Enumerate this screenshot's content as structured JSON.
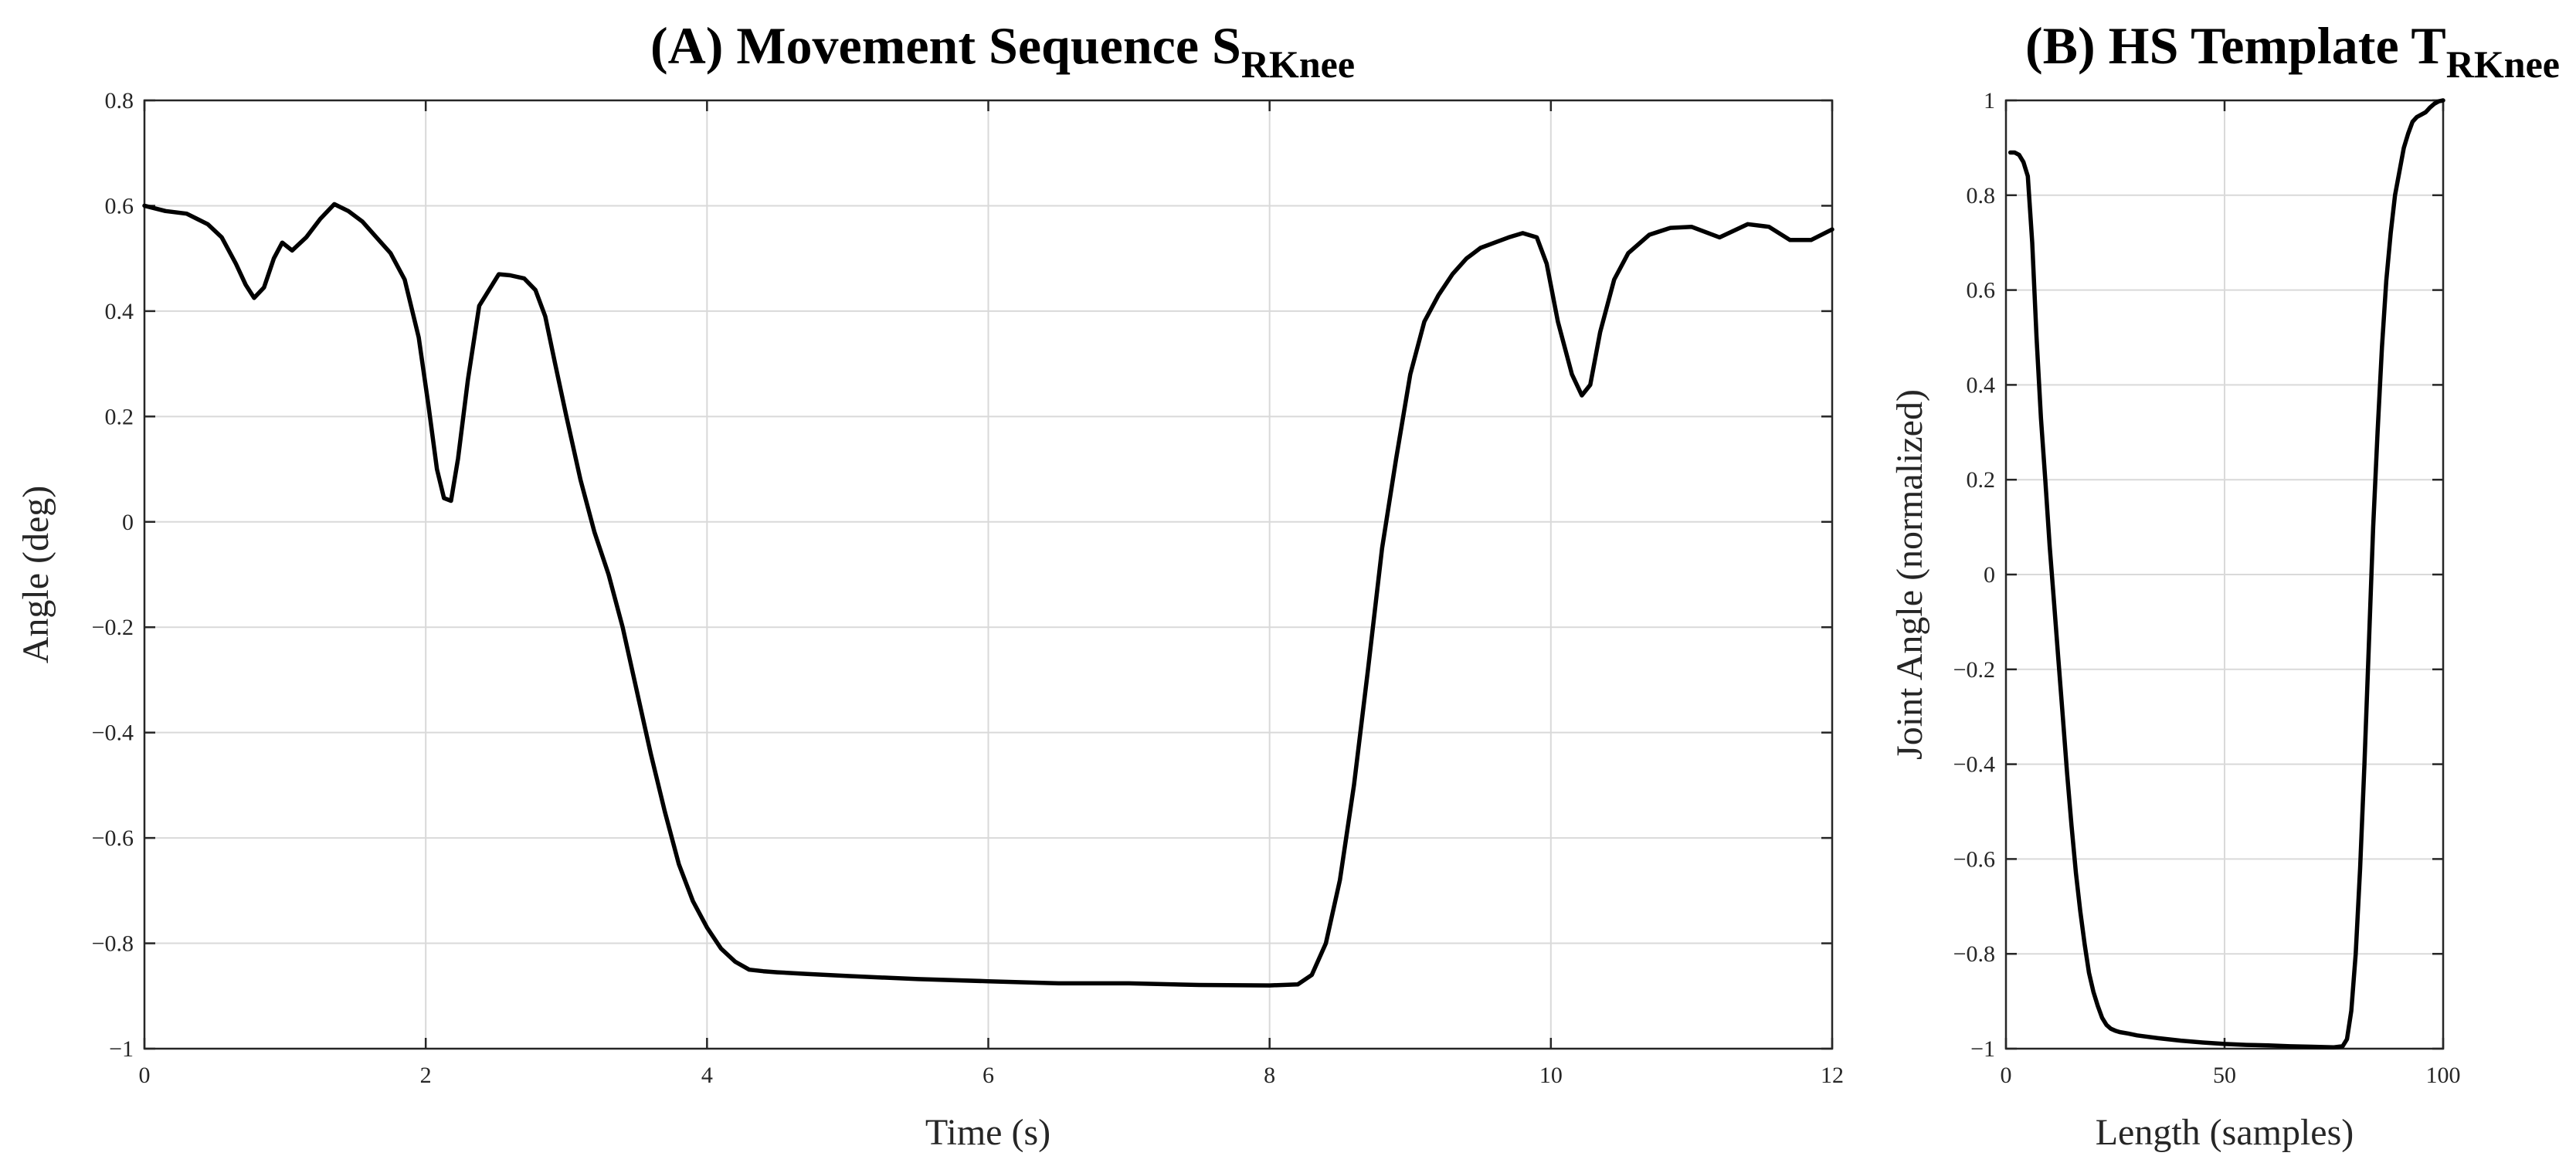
{
  "chart_data": [
    {
      "type": "line",
      "title": "(A) Movement Sequence S",
      "title_subscript": "RKnee",
      "xlabel": "Time (s)",
      "ylabel": "Angle (deg)",
      "xlim": [
        0,
        12
      ],
      "ylim": [
        -1,
        0.8
      ],
      "xticks": [
        0,
        2,
        4,
        6,
        8,
        10,
        12
      ],
      "xtick_labels": [
        "0",
        "2",
        "4",
        "6",
        "8",
        "10",
        "12"
      ],
      "yticks": [
        -1,
        -0.8,
        -0.6,
        -0.4,
        -0.2,
        0,
        0.2,
        0.4,
        0.6,
        0.8
      ],
      "ytick_labels": [
        "−1",
        "−0.8",
        "−0.6",
        "−0.4",
        "−0.2",
        "0",
        "0.2",
        "0.4",
        "0.6",
        "0.8"
      ],
      "grid": true,
      "series": [
        {
          "color": "#000000",
          "x": [
            0,
            0.15,
            0.3,
            0.45,
            0.55,
            0.65,
            0.72,
            0.78,
            0.85,
            0.92,
            0.98,
            1.05,
            1.15,
            1.25,
            1.35,
            1.45,
            1.55,
            1.65,
            1.75,
            1.85,
            1.95,
            2.02,
            2.08,
            2.13,
            2.18,
            2.23,
            2.3,
            2.38,
            2.45,
            2.52,
            2.6,
            2.7,
            2.78,
            2.85,
            2.92,
            3.0,
            3.1,
            3.2,
            3.3,
            3.4,
            3.5,
            3.6,
            3.7,
            3.8,
            3.9,
            4.0,
            4.1,
            4.2,
            4.3,
            4.4,
            4.5,
            4.7,
            5.0,
            5.5,
            6.0,
            6.5,
            7.0,
            7.5,
            8.0,
            8.2,
            8.3,
            8.4,
            8.5,
            8.6,
            8.7,
            8.8,
            8.9,
            9.0,
            9.1,
            9.2,
            9.3,
            9.4,
            9.5,
            9.6,
            9.7,
            9.8,
            9.9,
            9.97,
            10.05,
            10.15,
            10.22,
            10.28,
            10.35,
            10.45,
            10.55,
            10.7,
            10.85,
            11.0,
            11.2,
            11.4,
            11.55,
            11.7,
            11.85,
            12.0
          ],
          "y": [
            0.6,
            0.59,
            0.585,
            0.565,
            0.54,
            0.49,
            0.45,
            0.425,
            0.445,
            0.5,
            0.53,
            0.515,
            0.54,
            0.575,
            0.603,
            0.59,
            0.57,
            0.54,
            0.51,
            0.46,
            0.35,
            0.22,
            0.1,
            0.045,
            0.04,
            0.12,
            0.27,
            0.41,
            0.44,
            0.47,
            0.468,
            0.462,
            0.44,
            0.39,
            0.3,
            0.2,
            0.08,
            -0.02,
            -0.1,
            -0.2,
            -0.32,
            -0.44,
            -0.55,
            -0.65,
            -0.72,
            -0.77,
            -0.81,
            -0.835,
            -0.85,
            -0.853,
            -0.855,
            -0.858,
            -0.862,
            -0.868,
            -0.872,
            -0.876,
            -0.876,
            -0.879,
            -0.88,
            -0.878,
            -0.86,
            -0.8,
            -0.68,
            -0.5,
            -0.28,
            -0.05,
            0.12,
            0.28,
            0.38,
            0.43,
            0.47,
            0.5,
            0.52,
            0.53,
            0.54,
            0.548,
            0.54,
            0.49,
            0.38,
            0.28,
            0.24,
            0.26,
            0.36,
            0.46,
            0.51,
            0.545,
            0.558,
            0.56,
            0.54,
            0.565,
            0.56,
            0.535,
            0.535,
            0.555
          ]
        }
      ]
    },
    {
      "type": "line",
      "title": "(B) HS Template T",
      "title_subscript": "RKnee",
      "xlabel": "Length (samples)",
      "ylabel": "Joint Angle (normalized)",
      "xlim": [
        0,
        100
      ],
      "ylim": [
        -1,
        1
      ],
      "xticks": [
        0,
        50,
        100
      ],
      "xtick_labels": [
        "0",
        "50",
        "100"
      ],
      "yticks": [
        -1,
        -0.8,
        -0.6,
        -0.4,
        -0.2,
        0,
        0.2,
        0.4,
        0.6,
        0.8,
        1
      ],
      "ytick_labels": [
        "−1",
        "−0.8",
        "−0.6",
        "−0.4",
        "−0.2",
        "0",
        "0.2",
        "0.4",
        "0.6",
        "0.8",
        "1"
      ],
      "grid": true,
      "series": [
        {
          "color": "#000000",
          "x": [
            1,
            2,
            3,
            4,
            5,
            6,
            7,
            8,
            9,
            10,
            11,
            12,
            13,
            14,
            15,
            16,
            17,
            18,
            19,
            20,
            21,
            22,
            23,
            24,
            25,
            26,
            28,
            30,
            35,
            40,
            45,
            50,
            55,
            60,
            65,
            70,
            75,
            77,
            78,
            79,
            80,
            81,
            82,
            83,
            84,
            85,
            86,
            87,
            88,
            89,
            90,
            91,
            92,
            93,
            94,
            95,
            96,
            97,
            98,
            99,
            100
          ],
          "y": [
            0.89,
            0.89,
            0.885,
            0.87,
            0.84,
            0.7,
            0.5,
            0.33,
            0.2,
            0.06,
            -0.06,
            -0.18,
            -0.3,
            -0.42,
            -0.53,
            -0.63,
            -0.71,
            -0.78,
            -0.84,
            -0.88,
            -0.91,
            -0.935,
            -0.95,
            -0.958,
            -0.962,
            -0.965,
            -0.968,
            -0.972,
            -0.978,
            -0.983,
            -0.987,
            -0.99,
            -0.992,
            -0.993,
            -0.995,
            -0.996,
            -0.997,
            -0.995,
            -0.98,
            -0.92,
            -0.8,
            -0.62,
            -0.4,
            -0.15,
            0.1,
            0.3,
            0.48,
            0.62,
            0.72,
            0.8,
            0.85,
            0.9,
            0.93,
            0.955,
            0.965,
            0.97,
            0.975,
            0.985,
            0.993,
            0.998,
            1.0
          ]
        }
      ]
    }
  ]
}
